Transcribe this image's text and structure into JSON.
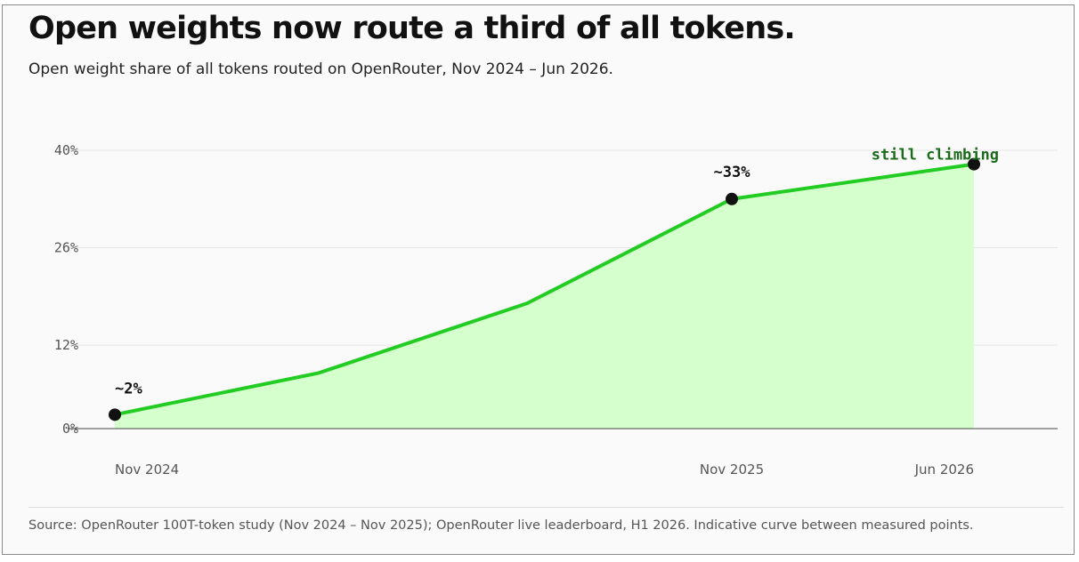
{
  "title": "Open weights now route a third of all tokens.",
  "subtitle": "Open weight share of all tokens routed on OpenRouter, Nov 2024 – Jun 2026.",
  "source": "Source: OpenRouter 100T-token study (Nov 2024 – Nov 2025); OpenRouter live leaderboard, H1 2026. Indicative curve between measured points.",
  "colors": {
    "line": "#22cc22",
    "fill": "#d5ffcc",
    "marker": "#111111",
    "callout": "#1a6b1a",
    "grid": "#e6e6e6",
    "axis": "#444444"
  },
  "chart_data": {
    "type": "area",
    "series": [
      {
        "points": [
          {
            "x": "Nov 2024",
            "y": 2
          },
          {
            "x": "Apr 2025",
            "y": 8
          },
          {
            "x": "Aug 2025",
            "y": 18
          },
          {
            "x": "Nov 2025",
            "y": 33
          },
          {
            "x": "Jun 2026",
            "y": 38
          }
        ]
      }
    ],
    "x_tick_labels": [
      "Nov 2024",
      "Nov 2025",
      "Jun 2026"
    ],
    "y_ticks": [
      0,
      12,
      26,
      40
    ],
    "y_tick_labels": [
      "0%",
      "12%",
      "26%",
      "40%"
    ],
    "ylim": [
      0,
      40
    ],
    "grid": true,
    "markers": [
      {
        "x": "Nov 2024",
        "y": 2,
        "label": "~2%"
      },
      {
        "x": "Nov 2025",
        "y": 33,
        "label": "~33%"
      },
      {
        "x": "Jun 2026",
        "y": 38,
        "label": "still climbing"
      }
    ]
  }
}
